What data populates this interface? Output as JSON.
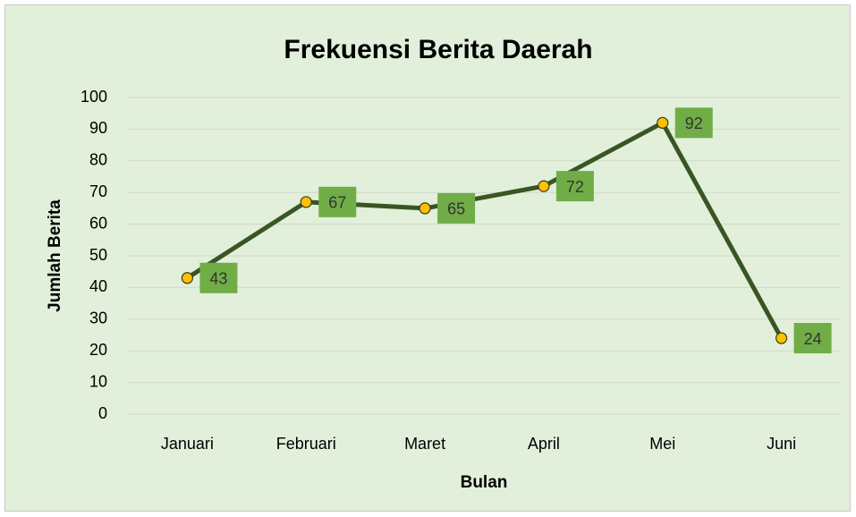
{
  "chart_data": {
    "type": "line",
    "title": "Frekuensi Berita Daerah",
    "x_label": "Bulan",
    "y_label": "Jumlah Berita",
    "categories": [
      "Januari",
      "Februari",
      "Maret",
      "April",
      "Mei",
      "Juni"
    ],
    "values": [
      43,
      67,
      65,
      72,
      92,
      24
    ],
    "color": "#375623",
    "marker_color": "#ffc000",
    "label_color": "#70ad47",
    "background": "#e2efda",
    "ylim": [
      0,
      100
    ],
    "yticks": [
      0,
      10,
      20,
      30,
      40,
      50,
      60,
      70,
      80,
      90,
      100
    ],
    "grid": true
  }
}
